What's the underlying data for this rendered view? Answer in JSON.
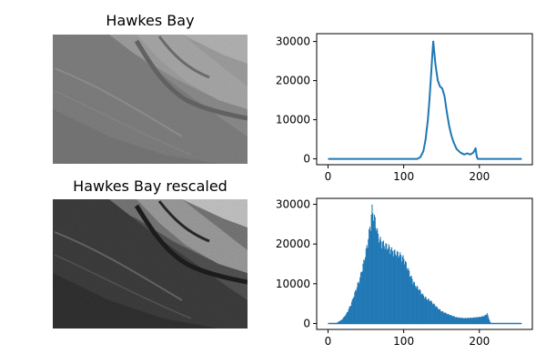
{
  "images": [
    {
      "title": "Hawkes Bay",
      "style": "original",
      "tone_range": [
        110,
        205
      ]
    },
    {
      "title": "Hawkes Bay rescaled",
      "style": "rescaled",
      "tone_range": [
        10,
        230
      ]
    }
  ],
  "chart_data": [
    {
      "type": "line",
      "title": "",
      "xlabel": "",
      "ylabel": "",
      "xlim": [
        -15,
        270
      ],
      "ylim": [
        -1500,
        32000
      ],
      "xticks": [
        0,
        100,
        200
      ],
      "yticks": [
        0,
        10000,
        20000,
        30000
      ],
      "grid": false,
      "color": "#1f77b4",
      "series": [
        {
          "x": [
            0,
            118,
            122,
            126,
            129,
            132,
            134,
            136,
            138,
            139,
            140,
            142,
            145,
            148,
            151,
            154,
            157,
            160,
            163,
            166,
            170,
            175,
            180,
            184,
            188,
            192,
            195,
            196,
            197,
            198,
            200,
            210,
            256
          ],
          "y": [
            0,
            0,
            400,
            2000,
            5000,
            10000,
            15000,
            21000,
            27000,
            30000,
            28000,
            24000,
            20000,
            18500,
            18000,
            16000,
            12000,
            8500,
            6000,
            4200,
            2500,
            1600,
            1100,
            1400,
            1100,
            1600,
            2700,
            1200,
            300,
            0,
            0,
            0,
            0
          ]
        }
      ]
    },
    {
      "type": "bar",
      "title": "",
      "xlabel": "",
      "ylabel": "",
      "xlim": [
        -15,
        270
      ],
      "ylim": [
        -1500,
        31500
      ],
      "xticks": [
        0,
        100,
        200
      ],
      "yticks": [
        0,
        10000,
        20000,
        30000
      ],
      "grid": false,
      "color": "#1f77b4",
      "series": [
        {
          "x": [
            0,
            10,
            18,
            24,
            30,
            36,
            42,
            48,
            52,
            56,
            58,
            60,
            62,
            66,
            70,
            75,
            80,
            85,
            90,
            95,
            100,
            105,
            110,
            115,
            120,
            125,
            130,
            135,
            140,
            145,
            150,
            160,
            170,
            180,
            190,
            200,
            205,
            208,
            210,
            212,
            214,
            216,
            220,
            256
          ],
          "y": [
            0,
            0,
            1000,
            2500,
            5000,
            8500,
            12000,
            17000,
            21000,
            26500,
            30000,
            28500,
            27000,
            23000,
            21500,
            20500,
            20000,
            19000,
            18500,
            18000,
            17000,
            14500,
            12000,
            10000,
            9000,
            7500,
            6500,
            6000,
            5000,
            4000,
            3200,
            2300,
            1600,
            1400,
            1500,
            1700,
            1900,
            2200,
            2700,
            1500,
            400,
            0,
            0,
            0
          ]
        }
      ]
    }
  ]
}
